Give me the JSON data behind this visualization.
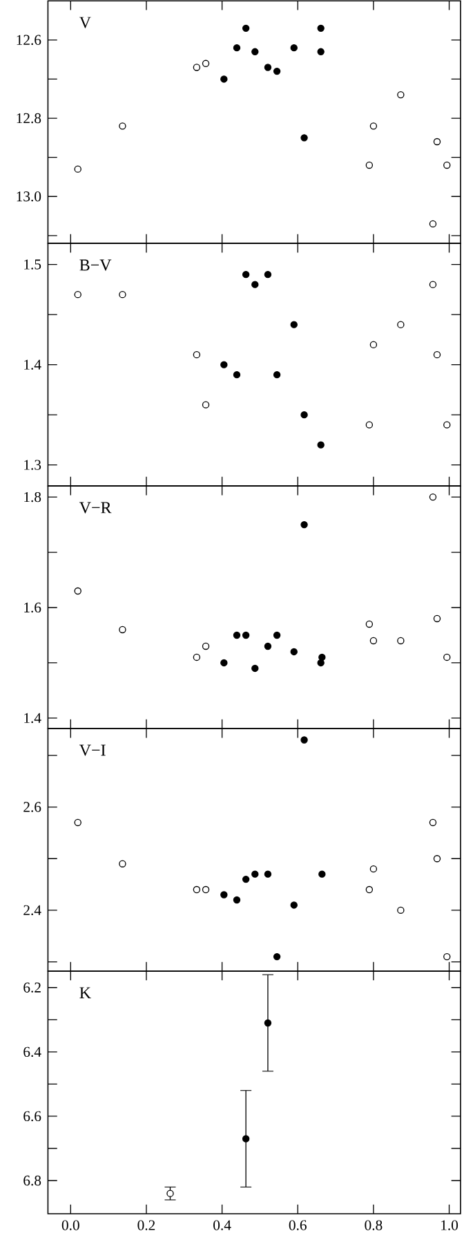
{
  "chart_data": [
    {
      "type": "scatter",
      "tick_labels": "y",
      "annotations": [
        "V"
      ],
      "xlim": [
        -0.06,
        1.03
      ],
      "ylim": [
        13.12,
        12.5
      ],
      "xticks": [
        0,
        0.2,
        0.4,
        0.6,
        0.8,
        1
      ],
      "yticks": [
        12.6,
        {
          "value": 12.7,
          "label": null
        },
        12.8,
        {
          "value": 12.9,
          "label": null
        },
        {
          "value": 13,
          "label": "13.0"
        },
        {
          "value": 13.1,
          "label": null
        }
      ],
      "series": [
        {
          "color": "#000000",
          "marker": "circle",
          "x": [
            0.405,
            0.439,
            0.463,
            0.487,
            0.521,
            0.545,
            0.59,
            0.617,
            0.661,
            0.661
          ],
          "values": [
            12.7,
            12.62,
            12.57,
            12.63,
            12.67,
            12.68,
            12.62,
            12.85,
            12.57,
            12.63
          ]
        },
        {
          "color": "#000000",
          "marker": "open circle",
          "x": [
            0.019,
            0.137,
            0.333,
            0.357,
            0.789,
            0.8,
            0.872,
            0.957,
            0.968,
            0.994
          ],
          "values": [
            12.93,
            12.82,
            12.67,
            12.66,
            12.92,
            12.82,
            12.74,
            13.07,
            12.86,
            12.92
          ]
        }
      ]
    },
    {
      "type": "scatter",
      "tick_labels": "y",
      "annotations": [
        "B−V"
      ],
      "xlim": [
        -0.06,
        1.03
      ],
      "ylim": [
        1.279,
        1.521
      ],
      "xticks": [
        0,
        0.2,
        0.4,
        0.6,
        0.8,
        1
      ],
      "yticks": [
        1.3,
        {
          "value": 1.35,
          "label": null
        },
        1.4,
        {
          "value": 1.45,
          "label": null
        },
        1.5
      ],
      "series": [
        {
          "color": "#000000",
          "marker": "circle",
          "x": [
            0.405,
            0.439,
            0.463,
            0.487,
            0.521,
            0.545,
            0.59,
            0.617,
            0.661
          ],
          "values": [
            1.4,
            1.39,
            1.49,
            1.48,
            1.49,
            1.39,
            1.44,
            1.35,
            1.32
          ]
        },
        {
          "color": "#000000",
          "marker": "open circle",
          "x": [
            0.019,
            0.137,
            0.333,
            0.357,
            0.789,
            0.8,
            0.872,
            0.957,
            0.968,
            0.994
          ],
          "values": [
            1.47,
            1.47,
            1.41,
            1.36,
            1.34,
            1.42,
            1.44,
            1.48,
            1.41,
            1.34
          ]
        }
      ]
    },
    {
      "type": "scatter",
      "tick_labels": "y",
      "annotations": [
        "V−R"
      ],
      "xlim": [
        -0.06,
        1.03
      ],
      "ylim": [
        1.381,
        1.82
      ],
      "xticks": [
        0,
        0.2,
        0.4,
        0.6,
        0.8,
        1
      ],
      "yticks": [
        1.4,
        {
          "value": 1.5,
          "label": null
        },
        1.6,
        {
          "value": 1.7,
          "label": null
        },
        1.8
      ],
      "series": [
        {
          "color": "#000000",
          "marker": "circle",
          "x": [
            0.405,
            0.439,
            0.463,
            0.487,
            0.521,
            0.545,
            0.59,
            0.617,
            0.661,
            0.664
          ],
          "values": [
            1.5,
            1.55,
            1.55,
            1.49,
            1.53,
            1.55,
            1.52,
            1.75,
            1.5,
            1.51
          ]
        },
        {
          "color": "#000000",
          "marker": "open circle",
          "x": [
            0.019,
            0.137,
            0.333,
            0.357,
            0.789,
            0.8,
            0.872,
            0.957,
            0.968,
            0.994
          ],
          "values": [
            1.63,
            1.56,
            1.51,
            1.53,
            1.57,
            1.54,
            1.54,
            1.8,
            1.58,
            1.51
          ]
        }
      ]
    },
    {
      "type": "scatter",
      "tick_labels": "y",
      "annotations": [
        "V−I"
      ],
      "xlim": [
        -0.06,
        1.03
      ],
      "ylim": [
        2.282,
        2.752
      ],
      "xticks": [
        0,
        0.2,
        0.4,
        0.6,
        0.8,
        1
      ],
      "yticks": [
        {
          "value": 2.3,
          "label": null
        },
        2.4,
        {
          "value": 2.5,
          "label": null
        },
        2.6,
        {
          "value": 2.7,
          "label": null
        }
      ],
      "series": [
        {
          "color": "#000000",
          "marker": "circle",
          "x": [
            0.405,
            0.439,
            0.463,
            0.487,
            0.521,
            0.545,
            0.59,
            0.617,
            0.664
          ],
          "values": [
            2.43,
            2.42,
            2.46,
            2.47,
            2.47,
            2.31,
            2.41,
            2.73,
            2.47
          ]
        },
        {
          "color": "#000000",
          "marker": "open circle",
          "x": [
            0.019,
            0.137,
            0.333,
            0.357,
            0.789,
            0.8,
            0.872,
            0.957,
            0.968,
            0.994
          ],
          "values": [
            2.57,
            2.49,
            2.44,
            2.44,
            2.44,
            2.48,
            2.4,
            2.57,
            2.5,
            2.31
          ]
        }
      ]
    },
    {
      "type": "scatter",
      "annotations": [
        "K"
      ],
      "xlim": [
        -0.06,
        1.03
      ],
      "ylim": [
        6.903,
        6.149
      ],
      "xticks": [
        {
          "value": 0,
          "label": "0.0"
        },
        {
          "value": 0.2,
          "label": "0.2"
        },
        {
          "value": 0.4,
          "label": "0.4"
        },
        {
          "value": 0.6,
          "label": "0.6"
        },
        {
          "value": 0.8,
          "label": "0.8"
        },
        {
          "value": 1,
          "label": "1.0"
        }
      ],
      "yticks": [
        6.2,
        {
          "value": 6.3,
          "label": null
        },
        6.4,
        {
          "value": 6.5,
          "label": null
        },
        6.6,
        {
          "value": 6.7,
          "label": null
        },
        6.8
      ],
      "series": [
        {
          "color": "#000000",
          "marker": "circle",
          "x": [
            0.463,
            0.521
          ],
          "values": [
            6.67,
            6.31
          ],
          "errors": [
            0.15,
            0.15
          ]
        },
        {
          "color": "#000000",
          "marker": "open circle",
          "x": [
            0.263
          ],
          "values": [
            6.84
          ],
          "errors": [
            0.02
          ]
        }
      ]
    }
  ]
}
